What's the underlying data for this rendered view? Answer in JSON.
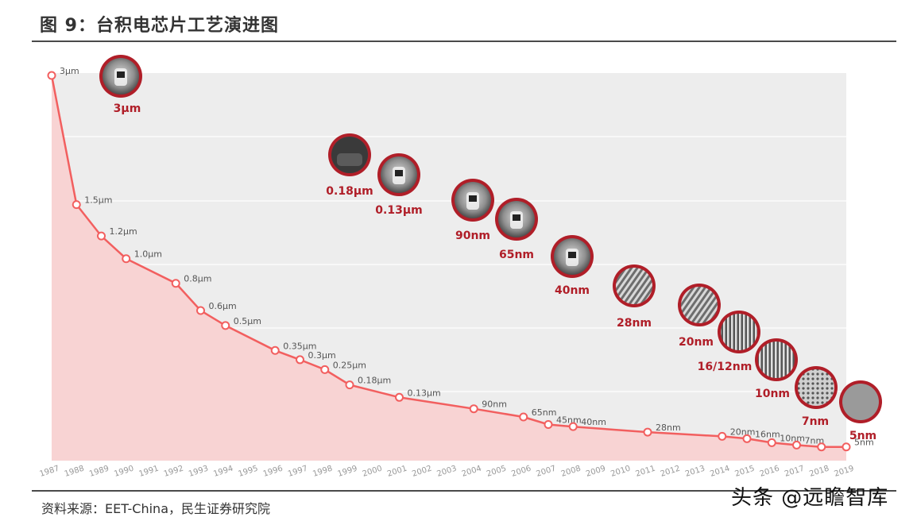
{
  "header": {
    "title": "图 9：台积电芯片工艺演进图"
  },
  "footer": {
    "source": "资料来源：EET-China，民生证券研究院",
    "watermark": "头条 @远瞻智库"
  },
  "colors": {
    "line": "#f25f5f",
    "area": "#f8d3d3",
    "callout_ring": "#b01e28",
    "callout_label": "#b01e28"
  },
  "chart_data": {
    "type": "area",
    "title": "",
    "xlabel": "",
    "ylabel": "",
    "grid": true,
    "x": [
      "1987",
      "1988",
      "1989",
      "1990",
      "1991",
      "1992",
      "1993",
      "1994",
      "1995",
      "1996",
      "1997",
      "1998",
      "1999",
      "2000",
      "2001",
      "2002",
      "2003",
      "2004",
      "2005",
      "2006",
      "2007",
      "2008",
      "2009",
      "2010",
      "2011",
      "2012",
      "2013",
      "2014",
      "2015",
      "2016",
      "2017",
      "2018",
      "2019"
    ],
    "series": [
      {
        "points": [
          {
            "year": "1987",
            "value_um": 3,
            "label": "3μm"
          },
          {
            "year": "1988",
            "value_um": 1.5,
            "label": "1.5μm"
          },
          {
            "year": "1989",
            "value_um": 1.2,
            "label": "1.2μm"
          },
          {
            "year": "1990",
            "value_um": 1.0,
            "label": "1.0μm"
          },
          {
            "year": "1992",
            "value_um": 0.8,
            "label": "0.8μm"
          },
          {
            "year": "1993",
            "value_um": 0.6,
            "label": "0.6μm"
          },
          {
            "year": "1994",
            "value_um": 0.5,
            "label": "0.5μm"
          },
          {
            "year": "1996",
            "value_um": 0.35,
            "label": "0.35μm"
          },
          {
            "year": "1997",
            "value_um": 0.3,
            "label": "0.3μm"
          },
          {
            "year": "1998",
            "value_um": 0.25,
            "label": "0.25μm"
          },
          {
            "year": "1999",
            "value_um": 0.18,
            "label": "0.18μm"
          },
          {
            "year": "2001",
            "value_um": 0.13,
            "label": "0.13μm"
          },
          {
            "year": "2004",
            "value_um": 0.09,
            "label": "90nm"
          },
          {
            "year": "2006",
            "value_um": 0.065,
            "label": "65nm"
          },
          {
            "year": "2007",
            "value_um": 0.045,
            "label": "45nm"
          },
          {
            "year": "2008",
            "value_um": 0.04,
            "label": "40nm"
          },
          {
            "year": "2011",
            "value_um": 0.028,
            "label": "28nm"
          },
          {
            "year": "2014",
            "value_um": 0.02,
            "label": "20nm"
          },
          {
            "year": "2015",
            "value_um": 0.016,
            "label": "16nm"
          },
          {
            "year": "2016",
            "value_um": 0.01,
            "label": "10nm"
          },
          {
            "year": "2017",
            "value_um": 0.007,
            "label": "7nm"
          },
          {
            "year": "2018",
            "value_um": 0.005,
            "label": ""
          },
          {
            "year": "2019",
            "value_um": 0.005,
            "label": "5nm"
          }
        ]
      }
    ],
    "callouts": [
      "3μm",
      "0.18μm",
      "0.13μm",
      "90nm",
      "65nm",
      "40nm",
      "28nm",
      "20nm",
      "16/12nm",
      "10nm",
      "7nm",
      "5nm"
    ]
  }
}
